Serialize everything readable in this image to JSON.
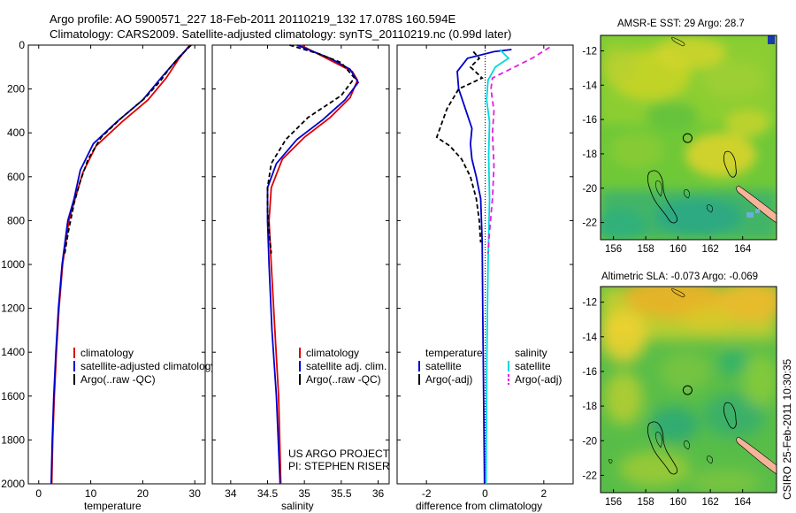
{
  "title": {
    "line1": "Argo profile: AO 5900571_227 18-Feb-2011 20110219_132 17.078S 160.594E",
    "line2": "Climatology: CARS2009. Satellite-adjusted climatology: synTS_20110219.nc (0.99d later)"
  },
  "colors": {
    "climatology": "#dd0000",
    "satellite": "#0000cc",
    "argo": "#000000",
    "sal_satellite": "#00d8e0",
    "sal_argo": "#e020e0",
    "land": "#f5b49a"
  },
  "chart_data": [
    {
      "type": "line",
      "name": "temperature-profile",
      "xlabel": "temperature",
      "ylabel": "",
      "xlim": [
        -2,
        32
      ],
      "ylim": [
        2000,
        0
      ],
      "xticks": [
        "0",
        "10",
        "20",
        "30"
      ],
      "xtick_values": [
        0,
        10,
        20,
        30
      ],
      "yticks": [
        "0",
        "200",
        "400",
        "600",
        "800",
        "1000",
        "1200",
        "1400",
        "1600",
        "1800",
        "2000"
      ],
      "ytick_values": [
        0,
        200,
        400,
        600,
        800,
        1000,
        1200,
        1400,
        1600,
        1800,
        2000
      ],
      "series": [
        {
          "name": "climatology",
          "color": "#dd0000",
          "dash": "none",
          "points": [
            [
              29,
              0
            ],
            [
              27,
              60
            ],
            [
              24.5,
              150
            ],
            [
              21,
              250
            ],
            [
              16,
              350
            ],
            [
              11,
              460
            ],
            [
              8.5,
              580
            ],
            [
              7,
              700
            ],
            [
              5.8,
              800
            ],
            [
              4.6,
              1000
            ],
            [
              3.9,
              1200
            ],
            [
              3.4,
              1400
            ],
            [
              3,
              1600
            ],
            [
              2.7,
              1800
            ],
            [
              2.5,
              2000
            ]
          ]
        },
        {
          "name": "satellite-adjusted climatology",
          "color": "#0000cc",
          "dash": "none",
          "points": [
            [
              29.2,
              0
            ],
            [
              26.8,
              60
            ],
            [
              23.5,
              150
            ],
            [
              20,
              250
            ],
            [
              15,
              350
            ],
            [
              10.5,
              450
            ],
            [
              8,
              570
            ],
            [
              6.8,
              700
            ],
            [
              5.6,
              800
            ],
            [
              4.5,
              1000
            ],
            [
              3.8,
              1200
            ],
            [
              3.3,
              1400
            ],
            [
              2.9,
              1600
            ],
            [
              2.6,
              1800
            ],
            [
              2.4,
              2000
            ]
          ]
        },
        {
          "name": "Argo(..raw -QC)",
          "color": "#000000",
          "dash": "5,3",
          "points": [
            [
              29.3,
              0
            ],
            [
              27,
              55
            ],
            [
              25,
              110
            ],
            [
              23.5,
              160
            ],
            [
              20.5,
              240
            ],
            [
              16,
              330
            ],
            [
              12,
              420
            ],
            [
              9.5,
              520
            ],
            [
              8,
              620
            ],
            [
              6.8,
              720
            ],
            [
              5.7,
              850
            ],
            [
              5,
              950
            ]
          ]
        }
      ],
      "legend": [
        "climatology",
        "satellite-adjusted climatology",
        "Argo(..raw -QC)"
      ]
    },
    {
      "type": "line",
      "name": "salinity-profile",
      "xlabel": "salinity",
      "xlim": [
        33.75,
        36.15
      ],
      "ylim": [
        2000,
        0
      ],
      "xticks": [
        "34",
        "34.5",
        "35",
        "35.5",
        "36"
      ],
      "xtick_values": [
        34,
        34.5,
        35,
        35.5,
        36
      ],
      "series": [
        {
          "name": "climatology",
          "color": "#dd0000",
          "dash": "none",
          "points": [
            [
              34.95,
              0
            ],
            [
              35.3,
              60
            ],
            [
              35.65,
              120
            ],
            [
              35.72,
              160
            ],
            [
              35.62,
              240
            ],
            [
              35.35,
              330
            ],
            [
              35.0,
              420
            ],
            [
              34.7,
              520
            ],
            [
              34.55,
              650
            ],
            [
              34.52,
              800
            ],
            [
              34.55,
              1000
            ],
            [
              34.6,
              1300
            ],
            [
              34.65,
              1600
            ],
            [
              34.68,
              2000
            ]
          ]
        },
        {
          "name": "satellite adj. clim.",
          "color": "#0000cc",
          "dash": "none",
          "points": [
            [
              34.9,
              0
            ],
            [
              35.35,
              60
            ],
            [
              35.62,
              110
            ],
            [
              35.73,
              170
            ],
            [
              35.55,
              250
            ],
            [
              35.25,
              340
            ],
            [
              34.9,
              430
            ],
            [
              34.62,
              540
            ],
            [
              34.5,
              650
            ],
            [
              34.5,
              800
            ],
            [
              34.52,
              1000
            ],
            [
              34.56,
              1300
            ],
            [
              34.62,
              1600
            ],
            [
              34.67,
              2000
            ]
          ]
        },
        {
          "name": "Argo(..raw -QC)",
          "color": "#000000",
          "dash": "5,3",
          "points": [
            [
              34.8,
              0
            ],
            [
              35.2,
              40
            ],
            [
              35.5,
              80
            ],
            [
              35.68,
              150
            ],
            [
              35.5,
              230
            ],
            [
              35.05,
              330
            ],
            [
              34.75,
              430
            ],
            [
              34.55,
              540
            ],
            [
              34.5,
              650
            ],
            [
              34.5,
              750
            ],
            [
              34.52,
              850
            ],
            [
              34.55,
              950
            ]
          ]
        }
      ],
      "legend": [
        "climatology",
        "satellite adj. clim.",
        "Argo(..raw -QC)"
      ],
      "annotation": {
        "line1": "US ARGO PROJECT",
        "line2": "PI: STEPHEN RISER"
      }
    },
    {
      "type": "line",
      "name": "difference-profile",
      "xlabel": "difference from climatology",
      "xlim": [
        -3,
        3
      ],
      "ylim": [
        2000,
        0
      ],
      "xticks": [
        "-2",
        "0",
        "2"
      ],
      "xtick_values": [
        -2,
        0,
        2
      ],
      "zero_line": 0,
      "series": [
        {
          "name": "temperature satellite",
          "color": "#0000cc",
          "dash": "none",
          "points": [
            [
              0.9,
              20
            ],
            [
              0.3,
              30
            ],
            [
              -0.6,
              60
            ],
            [
              -0.95,
              120
            ],
            [
              -0.9,
              200
            ],
            [
              -0.7,
              280
            ],
            [
              -0.45,
              380
            ],
            [
              -0.5,
              450
            ],
            [
              -0.45,
              520
            ],
            [
              -0.3,
              600
            ],
            [
              -0.15,
              700
            ],
            [
              -0.1,
              900
            ],
            [
              -0.08,
              1200
            ],
            [
              -0.05,
              1600
            ],
            [
              -0.02,
              2000
            ]
          ]
        },
        {
          "name": "temperature Argo(-adj)",
          "color": "#000000",
          "dash": "5,3",
          "points": [
            [
              -0.4,
              30
            ],
            [
              -0.2,
              60
            ],
            [
              -0.5,
              100
            ],
            [
              -0.1,
              150
            ],
            [
              -0.9,
              200
            ],
            [
              -1.3,
              290
            ],
            [
              -1.65,
              420
            ],
            [
              -1.2,
              460
            ],
            [
              -0.8,
              520
            ],
            [
              -0.5,
              600
            ],
            [
              -0.3,
              700
            ],
            [
              -0.2,
              800
            ],
            [
              -0.15,
              900
            ]
          ]
        },
        {
          "name": "salinity satellite",
          "color": "#00d8e0",
          "dash": "none",
          "points": [
            [
              0.5,
              20
            ],
            [
              0.8,
              60
            ],
            [
              0.35,
              100
            ],
            [
              0.1,
              160
            ],
            [
              0.05,
              250
            ],
            [
              0.15,
              350
            ],
            [
              0.12,
              500
            ],
            [
              0.15,
              700
            ],
            [
              0.1,
              1000
            ],
            [
              0.06,
              1400
            ],
            [
              0.04,
              1800
            ],
            [
              0.03,
              2000
            ]
          ]
        },
        {
          "name": "salinity Argo(-adj)",
          "color": "#e020e0",
          "dash": "6,4",
          "points": [
            [
              2.2,
              10
            ],
            [
              1.6,
              60
            ],
            [
              1.0,
              100
            ],
            [
              0.25,
              150
            ],
            [
              0.2,
              200
            ],
            [
              0.3,
              300
            ],
            [
              0.25,
              400
            ],
            [
              0.3,
              550
            ],
            [
              0.25,
              700
            ],
            [
              0.15,
              850
            ],
            [
              0.1,
              950
            ]
          ]
        }
      ],
      "legend_headers": {
        "temperature": "temperature",
        "salinity": "salinity"
      },
      "legend": [
        "satellite",
        "Argo(-adj)",
        "satellite",
        "Argo(-adj)"
      ]
    },
    {
      "type": "heatmap",
      "name": "sst-map",
      "title": "AMSR-E SST: 29 Argo: 28.7",
      "xlim": [
        155.2,
        166.1
      ],
      "ylim": [
        -23,
        -11.1
      ],
      "xticks": [
        "156",
        "158",
        "160",
        "162",
        "164"
      ],
      "xtick_values": [
        156,
        158,
        160,
        162,
        164
      ],
      "yticks": [
        "-12",
        "-14",
        "-16",
        "-18",
        "-20",
        "-22"
      ],
      "ytick_values": [
        -12,
        -14,
        -16,
        -18,
        -20,
        -22
      ],
      "argo_location": [
        160.59,
        -17.08
      ]
    },
    {
      "type": "heatmap",
      "name": "sla-map",
      "title": "Altimetric SLA: -0.073 Argo: -0.069",
      "xlim": [
        155.2,
        166.1
      ],
      "ylim": [
        -23,
        -11.1
      ],
      "xticks": [
        "156",
        "158",
        "160",
        "162",
        "164"
      ],
      "xtick_values": [
        156,
        158,
        160,
        162,
        164
      ],
      "yticks": [
        "-12",
        "-14",
        "-16",
        "-18",
        "-20",
        "-22"
      ],
      "ytick_values": [
        -12,
        -14,
        -16,
        -18,
        -20,
        -22
      ],
      "argo_location": [
        160.59,
        -17.08
      ]
    }
  ],
  "footer_stamp": "CSIRO 25-Feb-2011 10:30:35"
}
